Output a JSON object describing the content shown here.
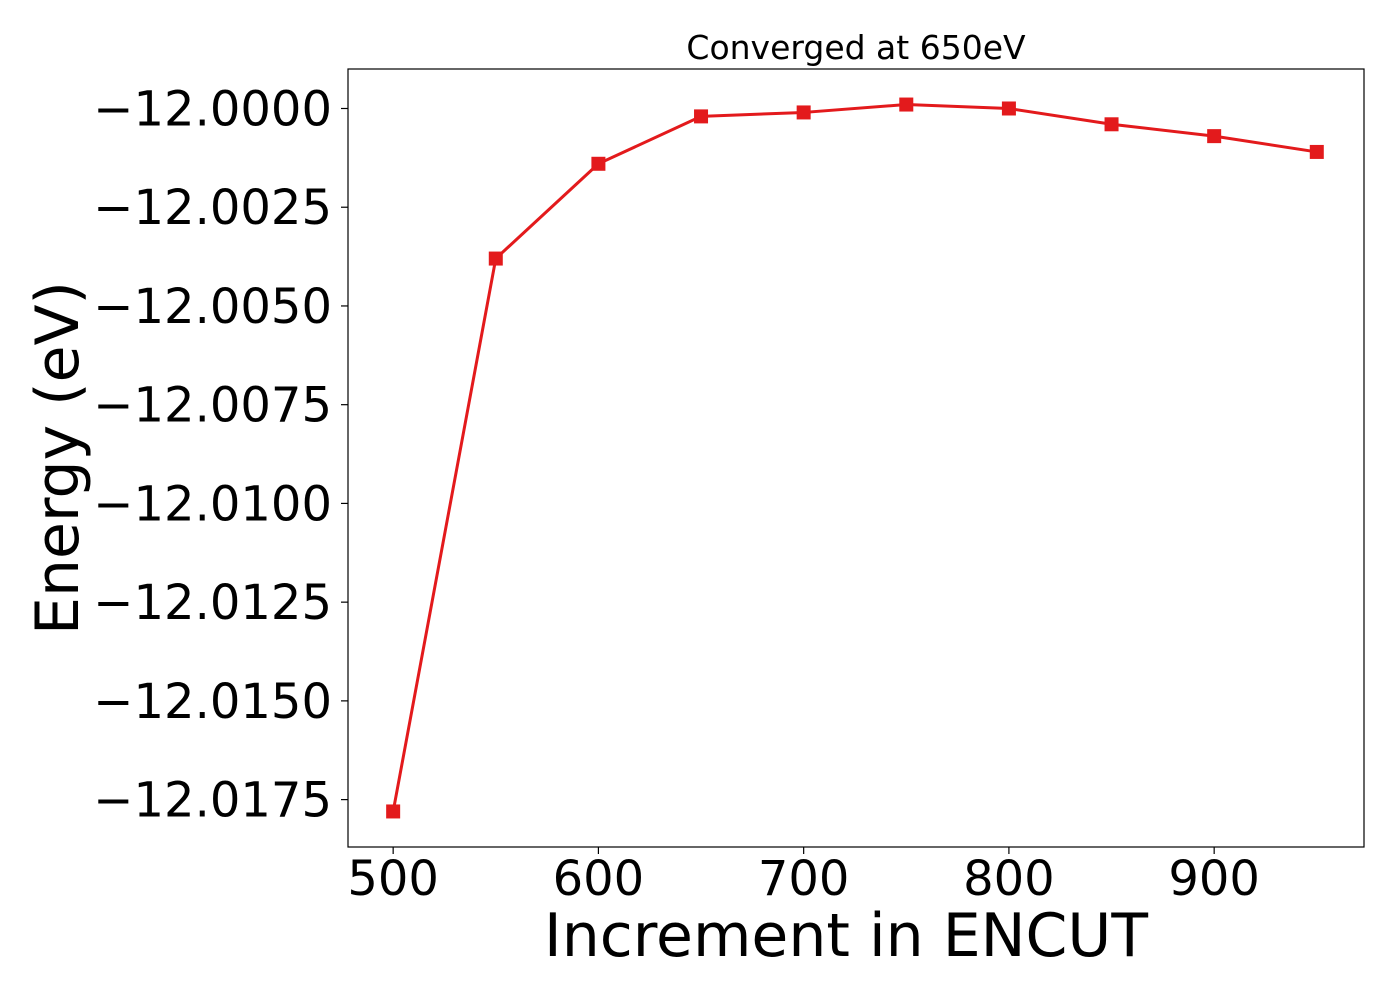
{
  "chart_data": {
    "type": "line",
    "title": "Converged at 650eV",
    "xlabel": "Increment in ENCUT",
    "ylabel": "Energy (eV)",
    "xlim": [
      478,
      973
    ],
    "ylim": [
      -12.0187,
      -11.999
    ],
    "x_ticks": [
      500,
      600,
      700,
      800,
      900
    ],
    "y_ticks": [
      -12.0,
      -12.0025,
      -12.005,
      -12.0075,
      -12.01,
      -12.0125,
      -12.015,
      -12.0175
    ],
    "y_tick_labels": [
      "−12.0000",
      "−12.0025",
      "−12.0050",
      "−12.0075",
      "−12.0100",
      "−12.0125",
      "−12.0150",
      "−12.0175"
    ],
    "x_tick_labels": [
      "500",
      "600",
      "700",
      "800",
      "900"
    ],
    "grid": false,
    "legend": "none",
    "series": [
      {
        "color": "#e31a1c",
        "marker": "square",
        "x": [
          500,
          550,
          600,
          650,
          700,
          750,
          800,
          850,
          900,
          950
        ],
        "y": [
          -12.0178,
          -12.0038,
          -12.0014,
          -12.0002,
          -12.0001,
          -11.9999,
          -12.0,
          -12.0004,
          -12.0007,
          -12.0011
        ]
      }
    ]
  }
}
